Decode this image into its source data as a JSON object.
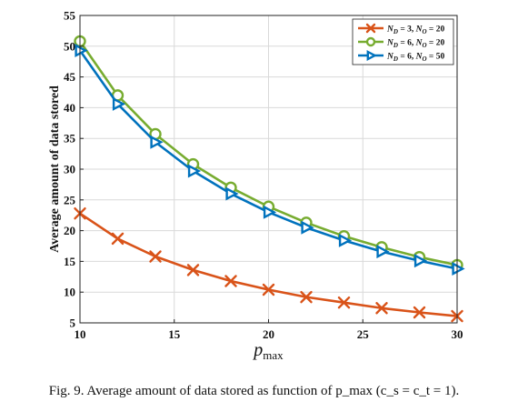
{
  "chart_data": {
    "type": "line",
    "xlabel": "p_max",
    "xlabel_main": "p",
    "xlabel_sub": "max",
    "ylabel": "Average amount of data stored",
    "xlim": [
      10,
      30
    ],
    "ylim": [
      5,
      55
    ],
    "xticks": [
      "10",
      "15",
      "20",
      "25",
      "30"
    ],
    "yticks": [
      "5",
      "10",
      "15",
      "20",
      "25",
      "30",
      "35",
      "40",
      "45",
      "50",
      "55"
    ],
    "grid": true,
    "legend_position": "top-right",
    "x": [
      10,
      12,
      14,
      16,
      18,
      20,
      22,
      24,
      26,
      28,
      30
    ],
    "series": [
      {
        "name": "N_D = 3, N_O = 20",
        "legend_d": "3",
        "legend_o": "20",
        "marker": "x",
        "color": "#d95319",
        "values": [
          22.8,
          18.7,
          15.8,
          13.6,
          11.8,
          10.4,
          9.2,
          8.3,
          7.4,
          6.7,
          6.1
        ]
      },
      {
        "name": "N_D = 6, N_O = 20",
        "legend_d": "6",
        "legend_o": "20",
        "marker": "circle",
        "color": "#77ac30",
        "values": [
          50.8,
          42.0,
          35.7,
          30.8,
          27.0,
          23.9,
          21.3,
          19.1,
          17.3,
          15.7,
          14.4
        ]
      },
      {
        "name": "N_D = 6, N_O = 50",
        "legend_d": "6",
        "legend_o": "50",
        "marker": "triangle-right",
        "color": "#0072bd",
        "values": [
          49.3,
          40.6,
          34.4,
          29.7,
          26.0,
          23.0,
          20.5,
          18.4,
          16.6,
          15.1,
          13.8
        ]
      }
    ]
  },
  "caption": {
    "text": "Fig. 9.   Average amount of data stored as function of p_max (c_s = c_t = 1)."
  }
}
